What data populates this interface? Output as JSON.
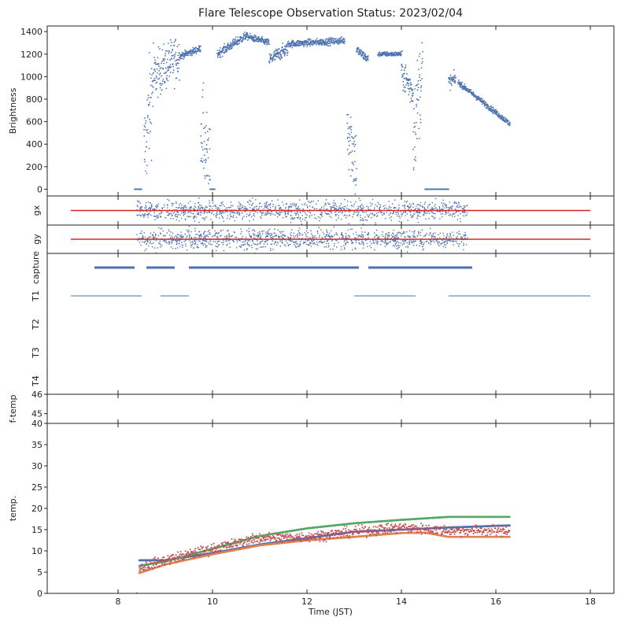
{
  "chart_data": {
    "type": "scatter",
    "title": "Flare Telescope Observation Status: 2023/02/04",
    "xlabel": "Time (JST)",
    "xlim": [
      6.5,
      18.5
    ],
    "xticks": [
      8,
      10,
      12,
      14,
      16,
      18
    ],
    "panels": [
      {
        "id": "brightness",
        "ylabel": "Brightness",
        "ylim": [
          -60,
          1450
        ],
        "yticks": [
          0,
          200,
          400,
          600,
          800,
          1000,
          1200,
          1400
        ],
        "series": [
          {
            "color": "#4c72b0",
            "segments": [
              {
                "x0": 8.35,
                "x1": 8.5,
                "y0": 0,
                "y1": 0,
                "spread": 0
              },
              {
                "x0": 8.55,
                "x1": 8.75,
                "y0": 300,
                "y1": 1000,
                "spread": 450
              },
              {
                "x0": 8.75,
                "x1": 9.3,
                "y0": 1000,
                "y1": 1180,
                "spread": 200
              },
              {
                "x0": 9.3,
                "x1": 9.75,
                "y0": 1180,
                "y1": 1250,
                "spread": 30
              },
              {
                "x0": 9.75,
                "x1": 9.95,
                "y0": 600,
                "y1": 100,
                "spread": 400
              },
              {
                "x0": 9.95,
                "x1": 10.05,
                "y0": 0,
                "y1": 0,
                "spread": 0
              },
              {
                "x0": 10.1,
                "x1": 10.7,
                "y0": 1200,
                "y1": 1360,
                "spread": 40
              },
              {
                "x0": 10.7,
                "x1": 11.2,
                "y0": 1360,
                "y1": 1300,
                "spread": 30
              },
              {
                "x0": 11.2,
                "x1": 11.6,
                "y0": 1150,
                "y1": 1250,
                "spread": 60
              },
              {
                "x0": 11.6,
                "x1": 12.8,
                "y0": 1290,
                "y1": 1320,
                "spread": 30
              },
              {
                "x0": 12.85,
                "x1": 13.05,
                "y0": 600,
                "y1": 200,
                "spread": 350
              },
              {
                "x0": 13.05,
                "x1": 13.3,
                "y0": 1240,
                "y1": 1150,
                "spread": 40
              },
              {
                "x0": 13.5,
                "x1": 14.0,
                "y0": 1200,
                "y1": 1200,
                "spread": 20
              },
              {
                "x0": 14.0,
                "x1": 14.25,
                "y0": 1050,
                "y1": 850,
                "spread": 150
              },
              {
                "x0": 14.25,
                "x1": 14.45,
                "y0": 500,
                "y1": 1100,
                "spread": 400
              },
              {
                "x0": 14.5,
                "x1": 15.0,
                "y0": 0,
                "y1": 0,
                "spread": 0
              },
              {
                "x0": 15.0,
                "x1": 15.15,
                "y0": 950,
                "y1": 980,
                "spread": 60
              },
              {
                "x0": 15.2,
                "x1": 16.3,
                "y0": 950,
                "y1": 580,
                "spread": 25
              }
            ]
          }
        ]
      },
      {
        "id": "gx",
        "ylabel": "gx",
        "series": [
          {
            "kind": "scatter",
            "color": "#4c72b0",
            "x0": 8.4,
            "x1": 15.4,
            "y": 0,
            "spread": 1.0
          },
          {
            "kind": "line",
            "color": "#d62728",
            "x0": 7.0,
            "x1": 18.0,
            "y": 0
          }
        ]
      },
      {
        "id": "gy",
        "ylabel": "gy",
        "series": [
          {
            "kind": "scatter",
            "color": "#4c72b0",
            "x0": 8.4,
            "x1": 15.4,
            "y": 0,
            "spread": 1.0
          },
          {
            "kind": "line",
            "color": "#d62728",
            "x0": 7.0,
            "x1": 18.0,
            "y": 0
          }
        ]
      },
      {
        "id": "status",
        "yticklabels": [
          "capture",
          "T1",
          "T2",
          "T3",
          "T4"
        ],
        "series": [
          {
            "row": "capture",
            "color": "#4c72b0",
            "style": "thick",
            "segments": [
              [
                7.5,
                8.35
              ],
              [
                8.6,
                9.2
              ],
              [
                9.5,
                13.1
              ],
              [
                13.3,
                15.5
              ]
            ]
          },
          {
            "row": "T1",
            "color": "#4c72b0",
            "style": "thin",
            "segments": [
              [
                7.0,
                8.5
              ],
              [
                8.9,
                9.5
              ],
              [
                13.0,
                14.3
              ],
              [
                15.0,
                18.0
              ]
            ]
          }
        ]
      },
      {
        "id": "f-temp",
        "ylabel": "f-temp",
        "ylim": [
          44.5,
          46.0
        ],
        "yticks": [
          45,
          46
        ],
        "series": []
      },
      {
        "id": "temp",
        "ylabel": "temp.",
        "ylim": [
          0,
          40
        ],
        "yticks": [
          0,
          5,
          10,
          15,
          20,
          25,
          30,
          35,
          40
        ],
        "series": [
          {
            "color": "#4c72b0",
            "points": [
              [
                8.45,
                7.8
              ],
              [
                9.0,
                7.8
              ],
              [
                10.0,
                9.5
              ],
              [
                11.0,
                11.5
              ],
              [
                12.0,
                13.0
              ],
              [
                13.0,
                14.5
              ],
              [
                14.0,
                15.0
              ],
              [
                15.0,
                15.5
              ],
              [
                16.3,
                16.0
              ]
            ]
          },
          {
            "color": "#dd8452",
            "points": [
              [
                8.45,
                4.8
              ],
              [
                9.0,
                6.8
              ],
              [
                10.0,
                9.2
              ],
              [
                11.0,
                11.3
              ],
              [
                12.0,
                12.5
              ],
              [
                13.0,
                13.3
              ],
              [
                14.0,
                14.2
              ],
              [
                14.5,
                14.3
              ],
              [
                15.0,
                13.3
              ],
              [
                16.3,
                13.3
              ]
            ]
          },
          {
            "color": "#55a868",
            "points": [
              [
                8.45,
                6.5
              ],
              [
                9.0,
                7.5
              ],
              [
                10.0,
                10.5
              ],
              [
                11.0,
                13.5
              ],
              [
                12.0,
                15.3
              ],
              [
                13.0,
                16.5
              ],
              [
                14.0,
                17.3
              ],
              [
                15.0,
                18.0
              ],
              [
                16.3,
                18.0
              ]
            ]
          },
          {
            "color": "#c44e52",
            "noise": 0.6,
            "points": [
              [
                8.45,
                6.0
              ],
              [
                9.0,
                7.8
              ],
              [
                10.0,
                10.5
              ],
              [
                11.0,
                13.0
              ],
              [
                12.0,
                13.3
              ],
              [
                13.0,
                14.5
              ],
              [
                14.0,
                15.5
              ],
              [
                15.0,
                14.8
              ],
              [
                16.3,
                14.8
              ]
            ]
          }
        ]
      }
    ]
  }
}
